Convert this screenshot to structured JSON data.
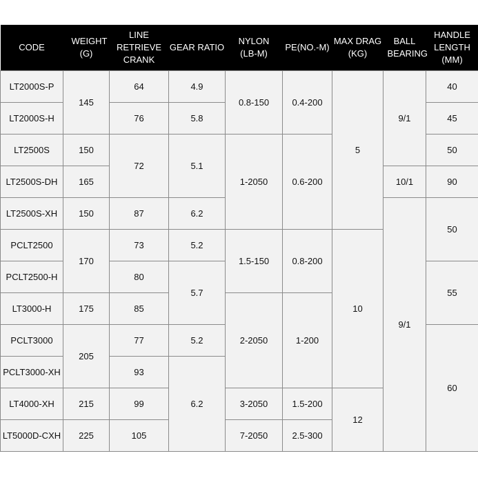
{
  "columns": [
    "CODE",
    "WEIGHT (G)",
    "LINE RETRIEVE CRANK",
    "GEAR RATIO",
    "NYLON (LB-M)",
    "PE(NO.-M)",
    "MAX DRAG (KG)",
    "BALL BEARING",
    "HANDLE LENGTH (MM)"
  ],
  "table": {
    "code": [
      "LT2000S-P",
      "LT2000S-H",
      "LT2500S",
      "LT2500S-DH",
      "LT2500S-XH",
      "PCLT2500",
      "PCLT2500-H",
      "LT3000-H",
      "PCLT3000",
      "PCLT3000-XH",
      "LT4000-XH",
      "LT5000D-CXH"
    ],
    "weight": [
      "145",
      "150",
      "165",
      "150",
      "170",
      "175",
      "205",
      "215",
      "225"
    ],
    "line_retrieve": [
      "64",
      "76",
      "72",
      "87",
      "73",
      "80",
      "85",
      "77",
      "93",
      "99",
      "105"
    ],
    "gear_ratio": [
      "4.9",
      "5.8",
      "5.1",
      "6.2",
      "5.2",
      "5.7",
      "5.2",
      "6.2"
    ],
    "nylon": [
      "0.8-150",
      "1-2050",
      "1.5-150",
      "2-2050",
      "3-2050",
      "7-2050"
    ],
    "pe": [
      "0.4-200",
      "0.6-200",
      "0.8-200",
      "1-200",
      "1.5-200",
      "2.5-300"
    ],
    "max_drag": [
      "5",
      "10",
      "12"
    ],
    "ball_bearing": [
      "9/1",
      "10/1",
      "9/1"
    ],
    "handle_length": [
      "40",
      "45",
      "50",
      "90",
      "50",
      "55",
      "60"
    ]
  }
}
